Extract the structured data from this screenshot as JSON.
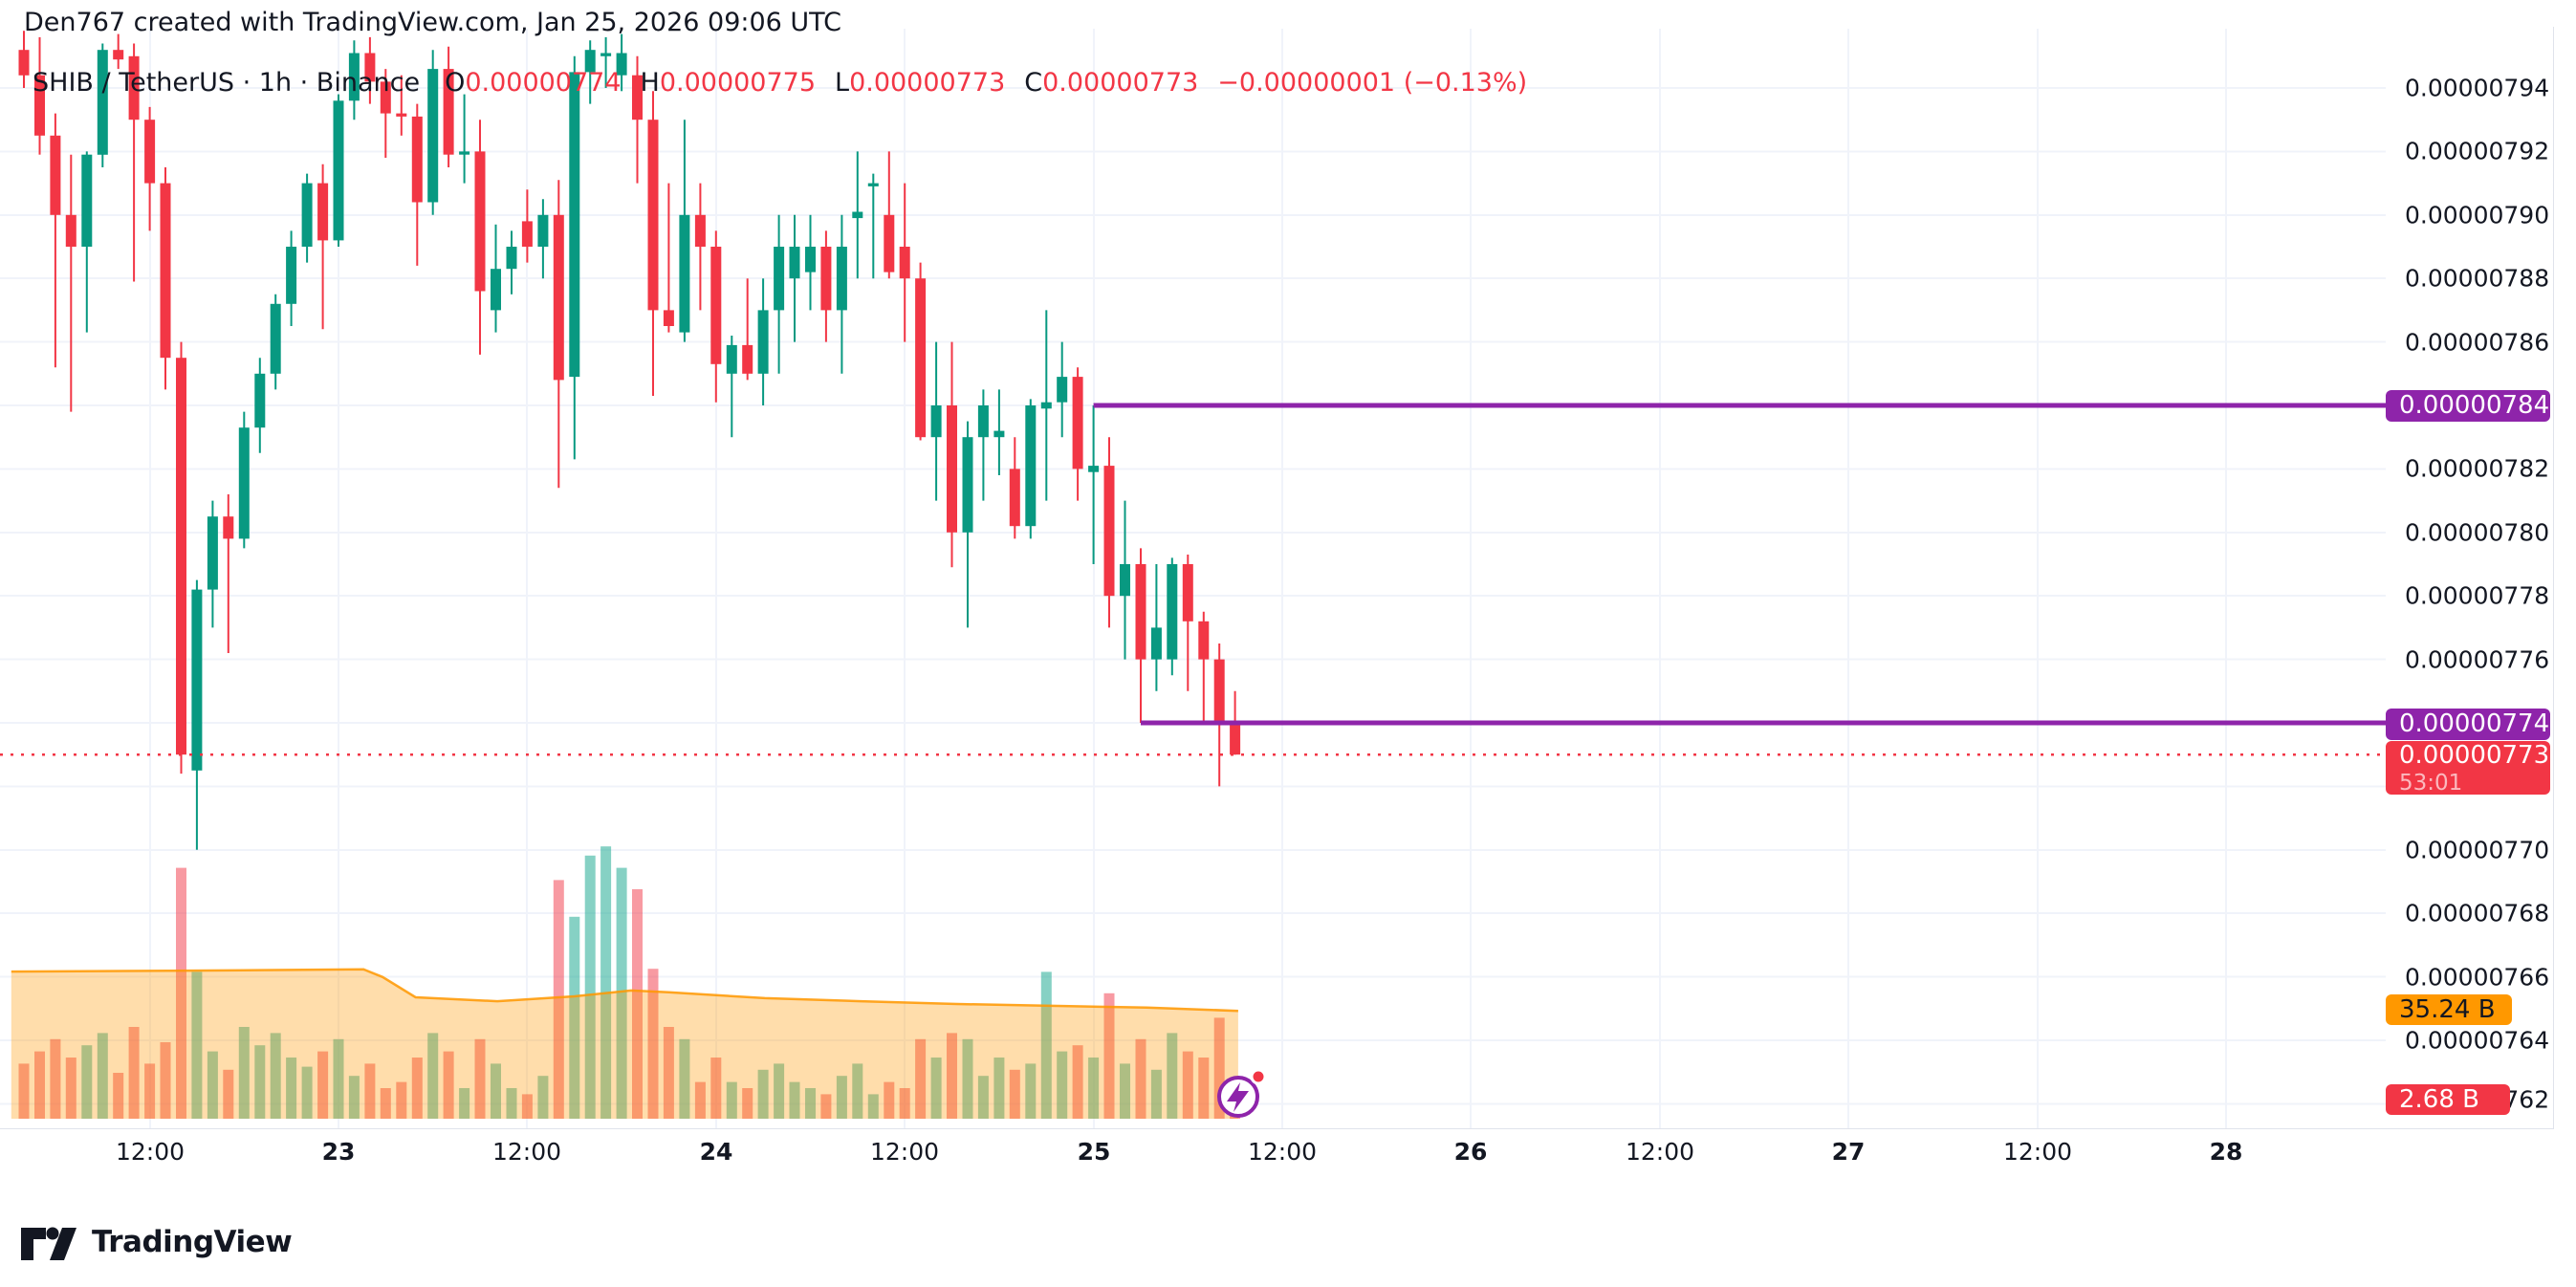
{
  "header": {
    "attribution": "Den767 created with TradingView.com, Jan 25, 2026 09:06 UTC"
  },
  "legend": {
    "symbol_line": "SHIB / TetherUS · 1h · Binance",
    "o_label": "O",
    "o_value": "0.00000774",
    "h_label": "H",
    "h_value": "0.00000775",
    "l_label": "L",
    "l_value": "0.00000773",
    "c_label": "C",
    "c_value": "0.00000773",
    "change": "−0.00000001 (−0.13%)"
  },
  "price_axis": {
    "labels": [
      {
        "text": "0.00000794",
        "price": 794
      },
      {
        "text": "0.00000792",
        "price": 792
      },
      {
        "text": "0.00000790",
        "price": 790
      },
      {
        "text": "0.00000788",
        "price": 788
      },
      {
        "text": "0.00000786",
        "price": 786
      },
      {
        "text": "0.00000782",
        "price": 782
      },
      {
        "text": "0.00000780",
        "price": 780
      },
      {
        "text": "0.00000778",
        "price": 778
      },
      {
        "text": "0.00000776",
        "price": 776
      },
      {
        "text": "0.00000770",
        "price": 770
      },
      {
        "text": "0.00000768",
        "price": 768
      },
      {
        "text": "0.00000766",
        "price": 766
      },
      {
        "text": "0.00000764",
        "price": 764
      },
      {
        "text": "0.00000762",
        "price": 762
      }
    ],
    "level_badge_upper": "0.00000784",
    "level_badge_lower": "0.00000774",
    "last_price_badge": {
      "price": "0.00000773",
      "countdown": "53:01"
    },
    "volume_ma_badge": "35.24 B",
    "volume_badge": "2.68 B"
  },
  "time_axis": {
    "ticks": [
      {
        "x": 157,
        "label": "12:00",
        "day": false
      },
      {
        "x": 354,
        "label": "23",
        "day": true
      },
      {
        "x": 551,
        "label": "12:00",
        "day": false
      },
      {
        "x": 749,
        "label": "24",
        "day": true
      },
      {
        "x": 946,
        "label": "12:00",
        "day": false
      },
      {
        "x": 1144,
        "label": "25",
        "day": true
      },
      {
        "x": 1341,
        "label": "12:00",
        "day": false
      },
      {
        "x": 1538,
        "label": "26",
        "day": true
      },
      {
        "x": 1736,
        "label": "12:00",
        "day": false
      },
      {
        "x": 1933,
        "label": "27",
        "day": true
      },
      {
        "x": 2131,
        "label": "12:00",
        "day": false
      },
      {
        "x": 2328,
        "label": "28",
        "day": true
      }
    ]
  },
  "footer": {
    "brand": "TradingView"
  },
  "colors": {
    "text": "#131722",
    "up": "#089981",
    "down": "#f23645",
    "vol_up": "rgba(34,171,148,0.55)",
    "vol_down": "rgba(242,54,69,0.5)",
    "ma_fill": "rgba(255,152,0,0.33)",
    "ma_line": "#ff9800",
    "grid": "#f0f3fa",
    "purple": "#8e24aa",
    "badge_red": "#f23645",
    "badge_orange": "#ff9800",
    "axis_border": "#e0e3eb"
  },
  "chart_data": {
    "type": "candlestick",
    "title": "SHIB / TetherUS · 1h · Binance",
    "interval": "1h",
    "price_unit": "1e-8 USDT (axis labels 0.00000762 – 0.00000794)",
    "ylim": [
      761.5,
      795.8
    ],
    "grid_prices": [
      794,
      792,
      790,
      788,
      786,
      784,
      782,
      780,
      778,
      776,
      774,
      772,
      770,
      768,
      766,
      764,
      762
    ],
    "last_price": 773,
    "countdown": "53:01",
    "levels": [
      {
        "type": "horizontal-ray",
        "price": 784,
        "start_index": 68,
        "color": "purple"
      },
      {
        "type": "horizontal-ray",
        "price": 774,
        "start_index": 71,
        "color": "purple"
      }
    ],
    "volume_ma_last_B": 35.24,
    "volume_last_B": 2.68,
    "volume_ma_points": [
      [
        -0.8,
        48.1
      ],
      [
        10.6,
        48.4
      ],
      [
        21.6,
        48.8
      ],
      [
        22.8,
        46.3
      ],
      [
        24.9,
        39.7
      ],
      [
        30.1,
        38.4
      ],
      [
        35,
        40.0
      ],
      [
        38.6,
        41.9
      ],
      [
        41,
        41.3
      ],
      [
        47.1,
        39.4
      ],
      [
        53.2,
        38.4
      ],
      [
        59.3,
        37.5
      ],
      [
        65.3,
        36.9
      ],
      [
        71.4,
        36.3
      ],
      [
        77.2,
        35.24
      ]
    ],
    "ohlcv": [
      [
        795.2,
        795.8,
        794.0,
        794.4,
        18
      ],
      [
        794.4,
        795.6,
        791.9,
        792.5,
        22
      ],
      [
        792.5,
        793.2,
        785.2,
        790.0,
        26
      ],
      [
        790.0,
        791.9,
        783.8,
        789.0,
        20
      ],
      [
        789.0,
        792.0,
        786.3,
        791.9,
        24
      ],
      [
        791.9,
        795.4,
        791.5,
        795.2,
        28
      ],
      [
        795.2,
        795.7,
        794.6,
        794.9,
        15
      ],
      [
        795.0,
        795.4,
        787.9,
        793.0,
        30
      ],
      [
        793.0,
        793.4,
        789.5,
        791.0,
        18
      ],
      [
        791.0,
        791.5,
        784.5,
        785.5,
        25
      ],
      [
        785.5,
        786.0,
        772.4,
        773.0,
        82
      ],
      [
        772.5,
        778.5,
        770.0,
        778.2,
        48
      ],
      [
        778.2,
        781.0,
        777.0,
        780.5,
        22
      ],
      [
        780.5,
        781.2,
        776.2,
        779.8,
        16
      ],
      [
        779.8,
        783.8,
        779.5,
        783.3,
        30
      ],
      [
        783.3,
        785.5,
        782.5,
        785.0,
        24
      ],
      [
        785.0,
        787.5,
        784.5,
        787.2,
        28
      ],
      [
        787.2,
        789.5,
        786.5,
        789.0,
        20
      ],
      [
        789.0,
        791.3,
        788.5,
        791.0,
        17
      ],
      [
        791.0,
        791.6,
        786.4,
        789.2,
        22
      ],
      [
        789.2,
        793.8,
        789.0,
        793.6,
        26
      ],
      [
        793.6,
        795.5,
        793.0,
        795.1,
        14
      ],
      [
        795.1,
        795.6,
        793.5,
        794.2,
        18
      ],
      [
        794.2,
        794.6,
        791.8,
        793.2,
        10
      ],
      [
        793.2,
        794.4,
        792.5,
        793.1,
        12
      ],
      [
        793.1,
        793.5,
        788.4,
        790.4,
        20
      ],
      [
        790.4,
        795.2,
        790.0,
        794.6,
        28
      ],
      [
        794.6,
        795.3,
        791.5,
        791.9,
        22
      ],
      [
        791.9,
        793.8,
        791.0,
        792.0,
        10
      ],
      [
        792.0,
        793.0,
        785.6,
        787.6,
        26
      ],
      [
        787.0,
        789.7,
        786.3,
        788.3,
        18
      ],
      [
        788.3,
        789.5,
        787.5,
        789.0,
        10
      ],
      [
        789.8,
        790.8,
        788.5,
        789.0,
        8
      ],
      [
        789.0,
        790.5,
        788.0,
        790.0,
        14
      ],
      [
        790.0,
        791.1,
        781.4,
        784.8,
        78
      ],
      [
        784.9,
        795.0,
        782.3,
        794.5,
        66
      ],
      [
        794.5,
        795.5,
        793.5,
        795.2,
        86
      ],
      [
        795.0,
        795.6,
        794.0,
        795.1,
        89
      ],
      [
        794.4,
        795.7,
        793.9,
        795.1,
        82
      ],
      [
        794.4,
        795.0,
        791.0,
        793.0,
        75
      ],
      [
        793.0,
        793.9,
        784.3,
        787.0,
        49
      ],
      [
        787.0,
        791.0,
        786.3,
        786.5,
        30
      ],
      [
        786.3,
        793.0,
        786.0,
        790.0,
        26
      ],
      [
        790.0,
        791.0,
        787.0,
        789.0,
        12
      ],
      [
        789.0,
        789.5,
        784.1,
        785.3,
        20
      ],
      [
        785.0,
        786.2,
        783.0,
        785.9,
        12
      ],
      [
        785.9,
        788.0,
        784.8,
        785.0,
        10
      ],
      [
        785.0,
        788.0,
        784.0,
        787.0,
        16
      ],
      [
        787.0,
        790.0,
        785.0,
        789.0,
        18
      ],
      [
        788.0,
        790.0,
        786.0,
        789.0,
        12
      ],
      [
        788.2,
        790.0,
        787.0,
        789.0,
        10
      ],
      [
        789.0,
        789.5,
        786.0,
        787.0,
        8
      ],
      [
        787.0,
        790.0,
        785.0,
        789.0,
        14
      ],
      [
        789.9,
        792.0,
        788.0,
        790.1,
        18
      ],
      [
        790.9,
        791.3,
        788.0,
        791.0,
        8
      ],
      [
        790.0,
        792.0,
        788.0,
        788.2,
        12
      ],
      [
        789.0,
        791.0,
        786.0,
        788.0,
        10
      ],
      [
        788.0,
        788.5,
        782.9,
        783.0,
        26
      ],
      [
        783.0,
        786.0,
        781.0,
        784.0,
        20
      ],
      [
        784.0,
        786.0,
        778.9,
        780.0,
        28
      ],
      [
        780.0,
        783.5,
        777.0,
        783.0,
        26
      ],
      [
        783.0,
        784.5,
        781.0,
        784.0,
        14
      ],
      [
        783.0,
        784.5,
        781.8,
        783.2,
        20
      ],
      [
        782.0,
        783.0,
        779.8,
        780.2,
        16
      ],
      [
        780.2,
        784.2,
        779.8,
        784.0,
        18
      ],
      [
        783.9,
        787.0,
        781.0,
        784.1,
        48
      ],
      [
        784.1,
        786.0,
        783.0,
        784.9,
        22
      ],
      [
        784.9,
        785.2,
        781.0,
        782.0,
        24
      ],
      [
        781.9,
        784.0,
        779.0,
        782.1,
        20
      ],
      [
        782.1,
        783.0,
        777.0,
        778.0,
        41
      ],
      [
        778.0,
        781.0,
        776.0,
        779.0,
        18
      ],
      [
        779.0,
        779.5,
        774.0,
        776.0,
        26
      ],
      [
        776.0,
        779.0,
        775.0,
        777.0,
        16
      ],
      [
        776.0,
        779.2,
        775.5,
        779.0,
        28
      ],
      [
        779.0,
        779.3,
        775.0,
        777.2,
        22
      ],
      [
        777.2,
        777.5,
        774.0,
        776.0,
        20
      ],
      [
        776.0,
        776.5,
        772.0,
        774.0,
        33
      ],
      [
        774.0,
        775.0,
        773.0,
        773.0,
        2.68
      ]
    ]
  }
}
